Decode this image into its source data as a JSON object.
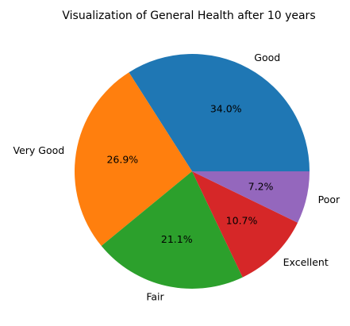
{
  "chart_data": {
    "type": "pie",
    "title": "Visualization of General Health after 10 years",
    "categories": [
      "Good",
      "Very Good",
      "Fair",
      "Excellent",
      "Poor"
    ],
    "values": [
      34.0,
      26.9,
      21.1,
      10.7,
      7.2
    ],
    "value_labels": [
      "34.0%",
      "26.9%",
      "21.1%",
      "10.7%",
      "7.2%"
    ],
    "colors": [
      "#1f77b4",
      "#ff7f0e",
      "#2ca02c",
      "#d62728",
      "#9467bd"
    ],
    "start_angle_deg": 0,
    "direction": "counterclockwise",
    "legend": "none"
  }
}
